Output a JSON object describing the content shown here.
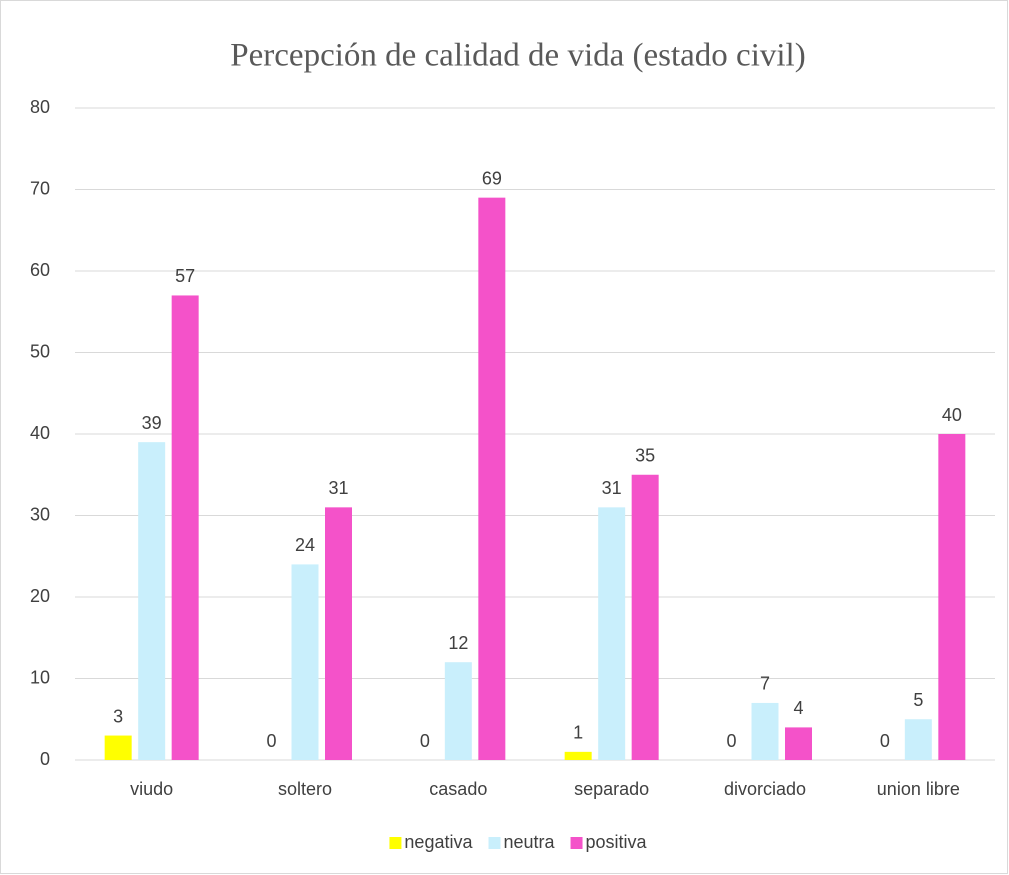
{
  "chart_data": {
    "type": "bar",
    "title": "Percepción de calidad de vida (estado civil)",
    "categories": [
      "viudo",
      "soltero",
      "casado",
      "separado",
      "divorciado",
      "union libre"
    ],
    "series": [
      {
        "name": "negativa",
        "color": "#ffff00",
        "values": [
          3,
          0,
          0,
          1,
          0,
          0
        ]
      },
      {
        "name": "neutra",
        "color": "#c9effc",
        "values": [
          39,
          24,
          12,
          31,
          7,
          5
        ]
      },
      {
        "name": "positiva",
        "color": "#f452c9",
        "values": [
          57,
          31,
          69,
          35,
          4,
          40
        ]
      }
    ],
    "ylim": [
      0,
      80
    ],
    "yticks": [
      0,
      10,
      20,
      30,
      40,
      50,
      60,
      70,
      80
    ],
    "grid": true,
    "legend": "bottom"
  }
}
